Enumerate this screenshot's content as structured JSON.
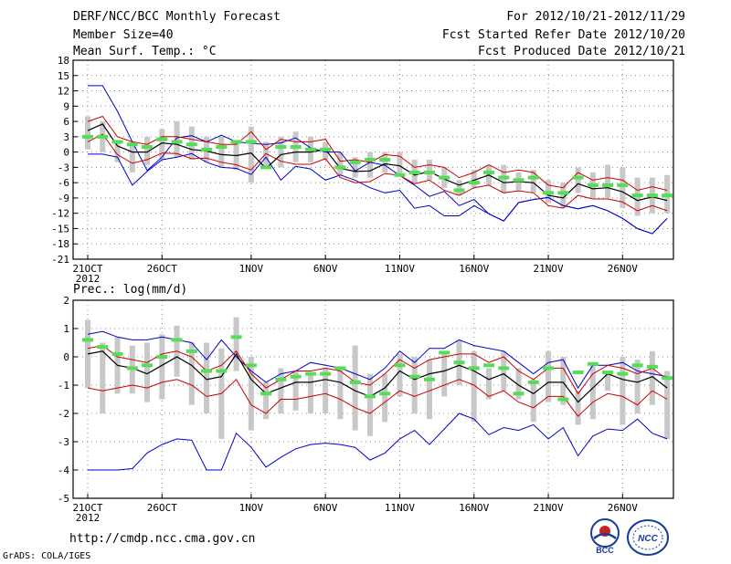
{
  "header": {
    "left": [
      "DERF/NCC/BCC Monthly Forecast",
      "Member Size=40",
      "Mean Surf. Temp.: °C"
    ],
    "right": [
      "For 2012/10/21-2012/11/29",
      "Fcst Started Refer Date 2012/10/20",
      "Fcst Produced Date 2012/10/21"
    ]
  },
  "footer": {
    "url": "http://cmdp.ncc.cma.gov.cn",
    "grads": "GrADS: COLA/IGES"
  },
  "logos": {
    "bcc": "BCC",
    "ncc": "NCC"
  },
  "colors": {
    "envelope": "#0000cc",
    "spread": "#cc0000",
    "mean": "#000000",
    "obs": "#55dd55",
    "bar": "#c8c8c8",
    "grid": "#888888"
  },
  "chart_data": [
    {
      "type": "line",
      "title": "Mean Surf. Temp.: °C",
      "xlabel": "",
      "ylabel": "°C",
      "xticks": [
        0,
        5,
        11,
        16,
        21,
        26,
        31,
        36
      ],
      "xticklabels": [
        "21OCT",
        "26OCT",
        "1NOV",
        "6NOV",
        "11NOV",
        "16NOV",
        "21NOV",
        "26NOV"
      ],
      "xyear": "2012",
      "ylim": [
        -21,
        18
      ],
      "yticks": [
        -21,
        -18,
        -15,
        -12,
        -9,
        -6,
        -3,
        0,
        3,
        6,
        9,
        12,
        15,
        18
      ],
      "grid": true,
      "max": [
        13,
        13,
        8,
        2,
        -3.6,
        -1,
        2.8,
        3.2,
        2,
        3.3,
        2,
        1.7,
        1.5,
        1.8,
        2.8,
        0.8,
        0,
        0,
        -3.7,
        -2,
        -2.6,
        -4.6,
        -6.5,
        -8.7,
        -7.7,
        -10.5,
        -9.3,
        -12.1,
        -13.5,
        -9.9,
        -9.3,
        -8.9,
        -10.5,
        -11.1,
        -10.5,
        -11.5,
        -13,
        -15,
        -16,
        -13
      ],
      "min": [
        -0.4,
        -0.4,
        -1,
        -6.5,
        -3.8,
        -1.5,
        -1,
        -0.3,
        -2,
        -3,
        -3.2,
        -4.4,
        -1,
        -5.5,
        -2.8,
        -3.3,
        -5.5,
        -4.5,
        -5.5,
        -7,
        -8,
        -7.5,
        -11,
        -10.5,
        -12.5,
        -12.5,
        -10.5,
        -12.1,
        -13.5,
        -9.9,
        -9.3,
        -8.9,
        -10.5,
        -11.1,
        -10.5,
        -11.5,
        -13,
        -15,
        -16,
        -13
      ],
      "upper": [
        6,
        7,
        3,
        2,
        1.5,
        3,
        3,
        2.5,
        2,
        1.5,
        1.5,
        4,
        0.5,
        2.5,
        2,
        2,
        2.5,
        -1.8,
        -1.5,
        -2,
        -0.5,
        -0.8,
        -3,
        -2.5,
        -3,
        -5,
        -4,
        -2.5,
        -4,
        -3.5,
        -4,
        -6.5,
        -7,
        -4,
        -5.5,
        -5,
        -5.5,
        -7.5,
        -6.8,
        -7.5
      ],
      "lower": [
        2,
        3.5,
        -0.5,
        -2.2,
        -1.5,
        -0.2,
        -0.3,
        -1.3,
        -1.2,
        -2,
        -2.5,
        -3.5,
        -0.3,
        -1.8,
        -2.4,
        -2.4,
        -1.3,
        -5,
        -6,
        -5.8,
        -4.2,
        -4.6,
        -6.2,
        -5.5,
        -7.5,
        -8.5,
        -7,
        -6.5,
        -8,
        -7.6,
        -8,
        -10.5,
        -11,
        -8.5,
        -9.2,
        -9.2,
        -9.8,
        -11.5,
        -10.5,
        -11.5
      ],
      "mean": [
        4.2,
        5.5,
        1.2,
        0,
        0,
        1.8,
        1.5,
        0.5,
        0.2,
        -0.5,
        -0.7,
        -0.2,
        -3.2,
        -0.5,
        0,
        0,
        0.5,
        -3.2,
        -3.8,
        -3.7,
        -2.3,
        -2.7,
        -4.5,
        -3.8,
        -5.3,
        -6.5,
        -5.5,
        -4.5,
        -6,
        -5.8,
        -6,
        -8.5,
        -9,
        -6.2,
        -7.2,
        -7,
        -7.8,
        -9.5,
        -8.8,
        -9.5
      ],
      "bar_low": [
        0.5,
        0,
        -2,
        -4,
        -2.5,
        -1.5,
        -1,
        -1.5,
        -2,
        -3,
        -3.5,
        -6,
        -3,
        -3,
        -2,
        -2,
        -1.5,
        -4.5,
        -5,
        -5,
        -4,
        -4.5,
        -6,
        -5.5,
        -7,
        -8.5,
        -7,
        -6.5,
        -8,
        -7.5,
        -8,
        -10,
        -11,
        -8,
        -9,
        -9,
        -11,
        -12.5,
        -12,
        -12
      ],
      "bar_high": [
        7,
        6,
        2,
        2,
        3,
        4.5,
        6,
        5,
        3,
        3,
        2,
        5,
        2,
        3,
        4,
        3,
        2,
        0,
        -1,
        0,
        0,
        0,
        -1.5,
        -1.5,
        -3,
        -5.5,
        -3.5,
        -2.5,
        -2.5,
        -4,
        -3.5,
        -5.5,
        -6,
        -3,
        -4,
        -2.5,
        -3,
        -5,
        -5,
        -4.5
      ],
      "obs": [
        3,
        3,
        2,
        1.5,
        1,
        2.5,
        2,
        1.5,
        0.5,
        1,
        2,
        2,
        -3,
        1,
        1,
        0.5,
        0.5,
        -3,
        -2,
        -1.5,
        -1.5,
        -4.5,
        -4,
        -4,
        -5,
        -7.5,
        -6,
        -4,
        -5,
        -5.5,
        -5,
        -8,
        -8,
        -5,
        -6.5,
        -6.5,
        -6.5,
        -8.5,
        -8.5,
        -8.5
      ]
    },
    {
      "type": "line",
      "title": "Prec.: log(mm/d)",
      "xlabel": "",
      "ylabel": "log(mm/d)",
      "xticks": [
        0,
        5,
        11,
        16,
        21,
        26,
        31,
        36
      ],
      "xticklabels": [
        "21OCT",
        "26OCT",
        "1NOV",
        "6NOV",
        "11NOV",
        "16NOV",
        "21NOV",
        "26NOV"
      ],
      "xyear": "2012",
      "ylim": [
        -5,
        2
      ],
      "yticks": [
        -5,
        -4,
        -3,
        -2,
        -1,
        0,
        1,
        2
      ],
      "grid": true,
      "max": [
        0.8,
        0.9,
        0.7,
        0.6,
        0.6,
        0.7,
        0.6,
        0.5,
        -0.1,
        0.6,
        0,
        -0.5,
        -0.9,
        -0.6,
        -0.5,
        -0.2,
        -0.3,
        -0.4,
        -0.6,
        -0.8,
        -0.4,
        0.2,
        -0.2,
        0.3,
        0.3,
        0.6,
        0.4,
        0.3,
        0.2,
        -0.2,
        -0.6,
        -0.2,
        -0.1,
        -1.1,
        -0.3,
        -0.3,
        -0.2,
        -0.5,
        -0.6,
        -0.7
      ],
      "min": [
        -4,
        -4,
        -4,
        -3.95,
        -3.4,
        -3.1,
        -2.9,
        -2.95,
        -4,
        -4,
        -2.7,
        -3.2,
        -3.9,
        -3.55,
        -3.25,
        -3.1,
        -3.05,
        -3.1,
        -3.2,
        -3.65,
        -3.4,
        -2.9,
        -2.6,
        -3.1,
        -2.55,
        -2,
        -2.2,
        -2.75,
        -2.5,
        -2.6,
        -2.4,
        -2.9,
        -2.5,
        -3.5,
        -2.8,
        -2.55,
        -2.6,
        -2.2,
        -2.7,
        -2.9
      ],
      "upper": [
        0.3,
        0.4,
        0,
        -0.1,
        -0.2,
        0.1,
        0.2,
        0,
        -0.5,
        -0.3,
        0.2,
        -0.6,
        -1.1,
        -0.8,
        -0.5,
        -0.5,
        -0.4,
        -0.5,
        -0.9,
        -1.0,
        -0.6,
        -0.1,
        -0.4,
        -0.1,
        0,
        0.1,
        0.1,
        -0.2,
        0,
        -0.5,
        -0.8,
        -0.4,
        -0.4,
        -1.3,
        -0.6,
        -0.3,
        -0.4,
        -0.6,
        -0.4,
        -0.8
      ],
      "lower": [
        -1.1,
        -1.2,
        -1.1,
        -1.0,
        -1.1,
        -0.9,
        -0.8,
        -1,
        -1.4,
        -1.3,
        -0.8,
        -1.7,
        -2,
        -1.5,
        -1.5,
        -1.4,
        -1.3,
        -1.5,
        -1.8,
        -2.0,
        -1.6,
        -1.2,
        -1.4,
        -1.2,
        -1,
        -0.8,
        -1,
        -1.4,
        -1.2,
        -1.6,
        -1.8,
        -1.4,
        -1.4,
        -2.1,
        -1.6,
        -1.3,
        -1.4,
        -1.7,
        -1.2,
        -1.5
      ],
      "mean": [
        0.1,
        0.2,
        -0.3,
        -0.4,
        -0.6,
        -0.3,
        0,
        -0.3,
        -0.8,
        -0.7,
        0.1,
        -0.8,
        -1.3,
        -1.1,
        -0.9,
        -0.9,
        -0.8,
        -0.9,
        -1.2,
        -1.4,
        -1.1,
        -0.5,
        -0.8,
        -0.6,
        -0.5,
        -0.3,
        -0.5,
        -0.8,
        -0.6,
        -1.0,
        -1.3,
        -0.9,
        -0.9,
        -1.6,
        -1.1,
        -0.6,
        -0.8,
        -0.9,
        -0.7,
        -1.1
      ],
      "bar_low": [
        -1.1,
        -2,
        -1.3,
        -1.3,
        -1.6,
        -1.5,
        -0.7,
        -1.7,
        -2,
        -2.9,
        -0.5,
        -2.6,
        -2.2,
        -2,
        -1.9,
        -2,
        -2,
        -2.2,
        -2.6,
        -2.8,
        -2.3,
        -1.4,
        -2,
        -2.2,
        -1.4,
        -1,
        -2.3,
        -1.5,
        -1.2,
        -1.5,
        -2.3,
        -1.6,
        -1.7,
        -2.4,
        -2.2,
        -1.2,
        -2.4,
        -2,
        -1.7,
        -2.9
      ],
      "bar_high": [
        1.3,
        0.5,
        0.7,
        0.4,
        0.5,
        0.8,
        1.1,
        0.5,
        0.5,
        0.3,
        1.4,
        0,
        -0.9,
        -0.4,
        -0.5,
        -0.6,
        -0.4,
        -0.4,
        0.4,
        -0.6,
        -0.6,
        0.1,
        0,
        -0.1,
        0.2,
        0.6,
        0.2,
        -0.4,
        0.2,
        -0.4,
        -0.8,
        0.2,
        0,
        -1.2,
        -0.2,
        -0.5,
        0,
        -0.1,
        0.2,
        -0.5
      ],
      "obs": [
        0.6,
        0.35,
        0.1,
        -0.4,
        -0.3,
        0,
        0.6,
        0.2,
        -0.5,
        -0.5,
        0.7,
        -0.3,
        -1.3,
        -0.8,
        -0.7,
        -0.6,
        -0.6,
        -0.4,
        -0.9,
        -1.4,
        -1.3,
        -0.3,
        -0.7,
        -0.8,
        0.15,
        -0.2,
        -0.4,
        -0.3,
        -0.4,
        -1.3,
        -0.9,
        -0.4,
        -1.5,
        -0.55,
        -0.25,
        -0.55,
        -0.6,
        -0.3,
        -0.35,
        -0.75
      ]
    }
  ]
}
